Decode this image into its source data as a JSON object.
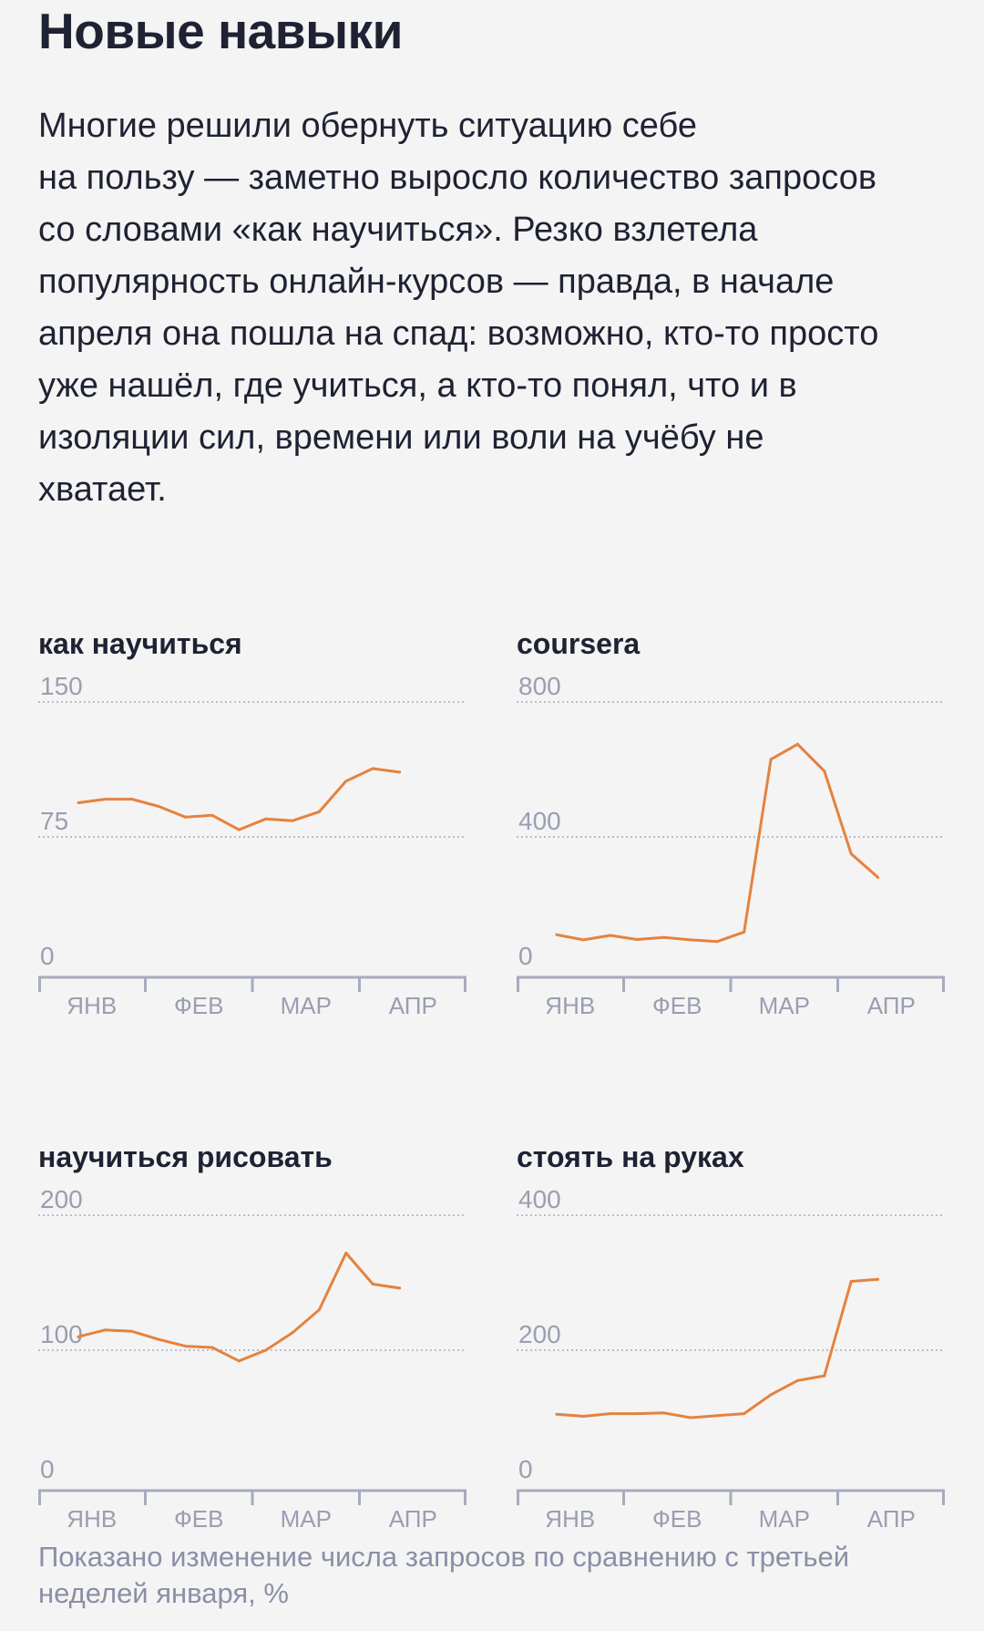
{
  "title": "Новые навыки",
  "intro": "Многие решили обернуть ситуацию себе\nна пользу — заметно выросло количество запросов\nсо словами «как научиться». Резко взлетела\nпопулярность онлайн-курсов — правда, в начале\nапреля она пошла на спад: возможно, кто-то просто\nуже нашёл, где учиться, а кто-то понял, что и в\nизоляции сил, времени или воли на учёбу не\nхватает.",
  "footnote": "Показано изменение числа запросов по сравнению с третьей неделей января, %",
  "colors": {
    "line": "#e5823f",
    "grid": "#a7abbc",
    "axis_text": "#9a9eb1",
    "text": "#1f2233"
  },
  "chart_data": [
    {
      "type": "line",
      "title": "как научиться",
      "ylim": [
        0,
        150
      ],
      "yticks": [
        "0",
        "75",
        "150"
      ],
      "months": [
        "ЯНВ",
        "ФЕВ",
        "МАР",
        "АПР"
      ],
      "x_domain": [
        0,
        16
      ],
      "x": [
        1.5,
        2.5,
        3.5,
        4.5,
        5.5,
        6.5,
        7.5,
        8.5,
        9.5,
        10.5,
        11.5,
        12.5,
        13.5,
        14.5
      ],
      "values": [
        94,
        96,
        96,
        92,
        86,
        87,
        79,
        85,
        84,
        89,
        106,
        113,
        111,
        null
      ],
      "grid": true,
      "legend": "none"
    },
    {
      "type": "line",
      "title": "coursera",
      "ylim": [
        0,
        800
      ],
      "yticks": [
        "0",
        "400",
        "800"
      ],
      "months": [
        "ЯНВ",
        "ФЕВ",
        "МАР",
        "АПР"
      ],
      "x_domain": [
        0,
        16
      ],
      "x": [
        1.5,
        2.5,
        3.5,
        4.5,
        5.5,
        6.5,
        7.5,
        8.5,
        9.5,
        10.5,
        11.5,
        12.5,
        13.5,
        14.5
      ],
      "values": [
        110,
        95,
        108,
        96,
        102,
        95,
        90,
        118,
        630,
        675,
        595,
        350,
        280,
        null
      ],
      "grid": true,
      "legend": "none"
    },
    {
      "type": "line",
      "title": "научиться рисовать",
      "ylim": [
        0,
        200
      ],
      "yticks": [
        "0",
        "100",
        "200"
      ],
      "months": [
        "ЯНВ",
        "ФЕВ",
        "МАР",
        "АПР"
      ],
      "x_domain": [
        0,
        16
      ],
      "x": [
        1.5,
        2.5,
        3.5,
        4.5,
        5.5,
        6.5,
        7.5,
        8.5,
        9.5,
        10.5,
        11.5,
        12.5,
        13.5,
        14.5
      ],
      "values": [
        110,
        115,
        114,
        108,
        103,
        102,
        92,
        100,
        113,
        130,
        172,
        149,
        146,
        null
      ],
      "grid": true,
      "legend": "none"
    },
    {
      "type": "line",
      "title": "стоять на руках",
      "ylim": [
        0,
        400
      ],
      "yticks": [
        "0",
        "200",
        "400"
      ],
      "months": [
        "ЯНВ",
        "ФЕВ",
        "МАР",
        "АПР"
      ],
      "x_domain": [
        0,
        16
      ],
      "x": [
        1.5,
        2.5,
        3.5,
        4.5,
        5.5,
        6.5,
        7.5,
        8.5,
        9.5,
        10.5,
        11.5,
        12.5,
        13.5,
        14.5
      ],
      "values": [
        105,
        102,
        106,
        106,
        107,
        100,
        103,
        106,
        134,
        155,
        162,
        302,
        305,
        null
      ],
      "grid": true,
      "legend": "none"
    }
  ]
}
